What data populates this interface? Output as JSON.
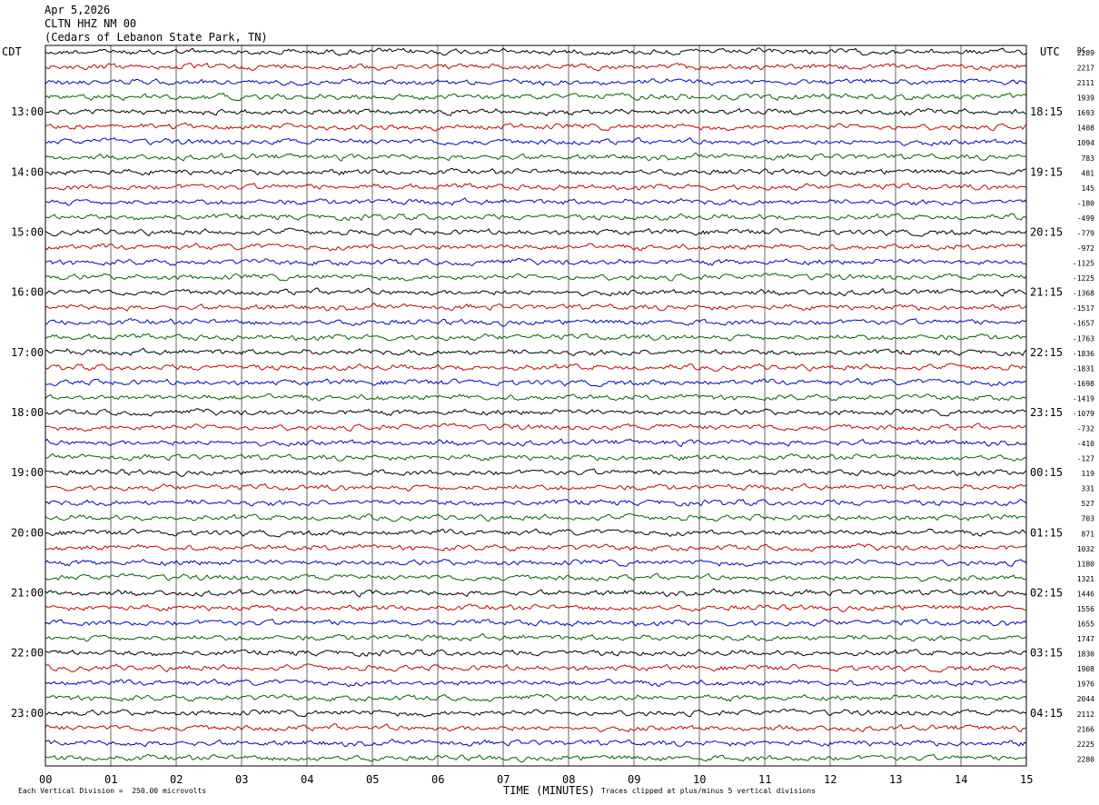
{
  "header": {
    "date": "Apr 5,2026",
    "station": "CLTN HHZ NM 00",
    "location": "(Cedars of Lebanon State Park, TN)"
  },
  "axes": {
    "left_zone": "CDT",
    "right_zone": "UTC",
    "dc_label": "DC",
    "xlabel": "TIME (MINUTES)",
    "footer_left": "Each Vertical Division =  250.00 microvolts",
    "footer_right": "Traces clipped at plus/minus 5 vertical divisions"
  },
  "chart_data": {
    "type": "line",
    "description_units": "helicorder rows of 15 minutes each",
    "x_ticks": [
      "00",
      "01",
      "02",
      "03",
      "04",
      "05",
      "06",
      "07",
      "08",
      "09",
      "10",
      "11",
      "12",
      "13",
      "14",
      "15"
    ],
    "xlim": [
      0,
      15
    ],
    "rows": 48,
    "row_colors": [
      "#000000",
      "#cc0000",
      "#0000cc",
      "#006600"
    ],
    "left_hour_labels": [
      "13:00",
      "14:00",
      "15:00",
      "16:00",
      "17:00",
      "18:00",
      "19:00",
      "20:00",
      "21:00",
      "22:00",
      "23:00"
    ],
    "right_hour_labels": [
      "18:15",
      "19:15",
      "20:15",
      "21:15",
      "22:15",
      "23:15",
      "00:15",
      "01:15",
      "02:15",
      "03:15",
      "04:15"
    ],
    "dc_offsets": [
      "2289",
      "2217",
      "2111",
      "1939",
      "1693",
      "1408",
      "1094",
      "783",
      "481",
      "145",
      "-180",
      "-499",
      "-779",
      "-972",
      "-1125",
      "-1225",
      "-1368",
      "-1517",
      "-1657",
      "-1763",
      "-1836",
      "-1831",
      "-1698",
      "-1419",
      "-1079",
      "-732",
      "-410",
      "-127",
      "119",
      "331",
      "527",
      "703",
      "871",
      "1032",
      "1180",
      "1321",
      "1446",
      "1556",
      "1655",
      "1747",
      "1830",
      "1908",
      "1976",
      "2044",
      "2112",
      "2166",
      "2225",
      "2280"
    ]
  }
}
